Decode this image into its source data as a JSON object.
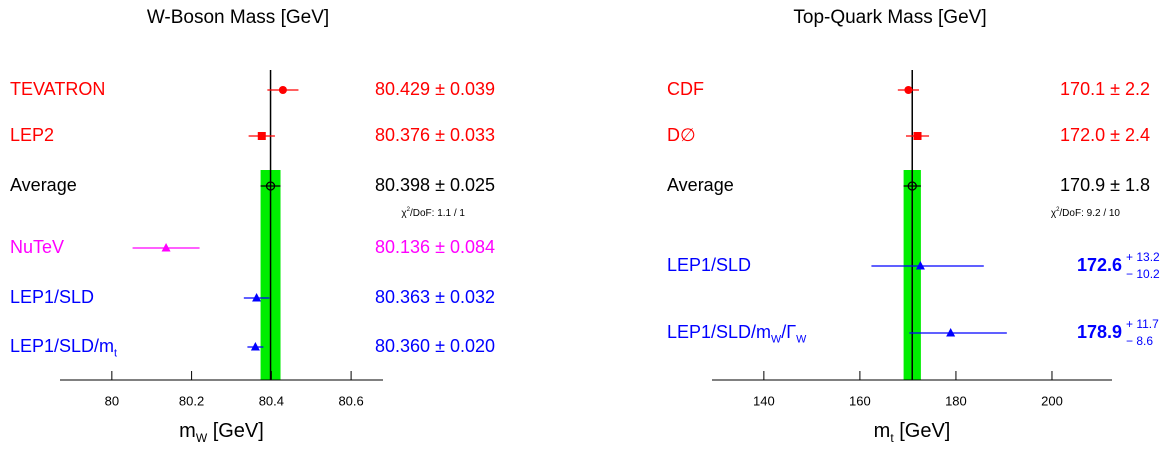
{
  "chart_data": [
    {
      "type": "errorbar",
      "title": "W-Boson Mass  [GeV]",
      "xlabel": [
        "m",
        "W",
        "  [GeV]"
      ],
      "xlim": [
        79.87,
        80.68
      ],
      "xticks": [
        80,
        80.2,
        80.4,
        80.6
      ],
      "band_color": "#00ee00",
      "points": [
        {
          "label": [
            "TEVATRON"
          ],
          "value": 80.429,
          "error": 0.039,
          "value_label": "80.429 ± 0.039",
          "color": "#ff0000",
          "marker": "circle"
        },
        {
          "label": [
            "LEP2"
          ],
          "value": 80.376,
          "error": 0.033,
          "value_label": "80.376 ± 0.033",
          "color": "#ff0000",
          "marker": "square"
        },
        {
          "label": [
            "Average"
          ],
          "value": 80.398,
          "error": 0.025,
          "value_label": "80.398 ± 0.025",
          "color": "#000000",
          "marker": "open-circle",
          "band": true,
          "note": [
            "χ",
            "2",
            "/DoF: 1.1 / 1"
          ]
        },
        {
          "label": [
            "NuTeV"
          ],
          "value": 80.136,
          "error": 0.084,
          "value_label": "80.136 ± 0.084",
          "color": "#ff00ff",
          "marker": "triangle"
        },
        {
          "label": [
            "LEP1/SLD"
          ],
          "value": 80.363,
          "error": 0.032,
          "value_label": "80.363 ± 0.032",
          "color": "#0000ff",
          "marker": "triangle"
        },
        {
          "label": [
            "LEP1/SLD/m",
            "t"
          ],
          "value": 80.36,
          "error": 0.02,
          "value_label": "80.360 ± 0.020",
          "color": "#0000ff",
          "marker": "triangle"
        }
      ]
    },
    {
      "type": "errorbar",
      "title": "Top-Quark Mass   [GeV]",
      "xlabel": [
        "m",
        "t",
        "   [GeV]"
      ],
      "xlim": [
        129.2,
        212.5
      ],
      "xticks": [
        140,
        160,
        180,
        200
      ],
      "band_color": "#00ee00",
      "points": [
        {
          "label": [
            "CDF"
          ],
          "value": 170.1,
          "error": 2.2,
          "value_label": "170.1 ± 2.2",
          "color": "#ff0000",
          "marker": "circle"
        },
        {
          "label": [
            "D∅"
          ],
          "value": 172.0,
          "error": 2.4,
          "value_label": "172.0 ± 2.4",
          "color": "#ff0000",
          "marker": "square"
        },
        {
          "label": [
            "Average"
          ],
          "value": 170.9,
          "error": 1.8,
          "value_label": "170.9 ± 1.8",
          "color": "#000000",
          "marker": "open-circle",
          "band": true,
          "note": [
            "χ",
            "2",
            "/DoF: 9.2 / 10"
          ]
        },
        {
          "label": [
            "LEP1/SLD"
          ],
          "value": 172.6,
          "err_plus": 13.2,
          "err_minus": 10.2,
          "value_label": "172.6",
          "plus_label": "+ 13.2",
          "minus_label": "− 10.2",
          "color": "#0000ff",
          "marker": "triangle"
        },
        {
          "label": [
            "LEP1/SLD/m",
            "W",
            "/Γ",
            "W"
          ],
          "value": 178.9,
          "err_plus": 11.7,
          "err_minus": 8.6,
          "value_label": "178.9",
          "plus_label": "+ 11.7",
          "minus_label": "− 8.6",
          "color": "#0000ff",
          "marker": "triangle"
        }
      ]
    }
  ]
}
